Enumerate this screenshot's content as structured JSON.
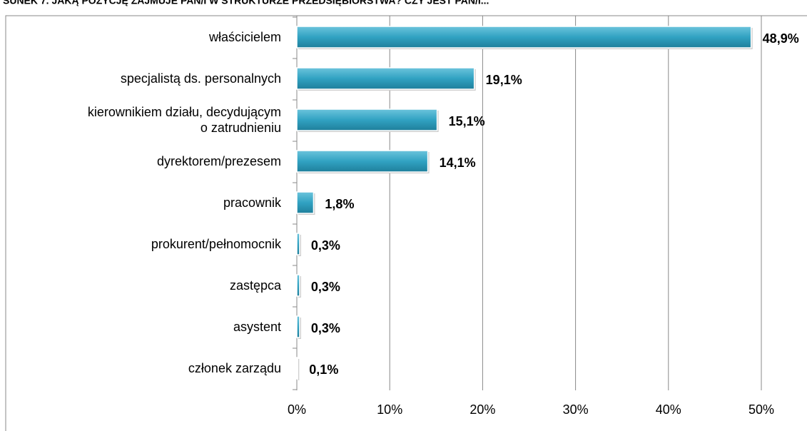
{
  "chart_data": {
    "type": "bar",
    "orientation": "horizontal",
    "title": "SUNEK 7. JAKĄ POZYCJĘ ZAJMUJE PAN/I W STRUKTURZE PRZEDSIĘBIORSTWA? CZY JEST PAN/I...",
    "categories": [
      "właścicielem",
      "specjalistą ds. personalnych",
      "kierownikiem działu, decydującym\no zatrudnieniu",
      "dyrektorem/prezesem",
      "pracownik",
      "prokurent/pełnomocnik",
      "zastępca",
      "asystent",
      "członek zarządu"
    ],
    "values": [
      48.9,
      19.1,
      15.1,
      14.1,
      1.8,
      0.3,
      0.3,
      0.3,
      0.1
    ],
    "value_labels": [
      "48,9%",
      "19,1%",
      "15,1%",
      "14,1%",
      "1,8%",
      "0,3%",
      "0,3%",
      "0,3%",
      "0,1%"
    ],
    "color": "#31a2c2",
    "xlim": [
      0,
      50
    ],
    "xticks": [
      {
        "value": 0,
        "label": "0%"
      },
      {
        "value": 10,
        "label": "10%"
      },
      {
        "value": 20,
        "label": "20%"
      },
      {
        "value": 30,
        "label": "30%"
      },
      {
        "value": 40,
        "label": "40%"
      },
      {
        "value": 50,
        "label": "50%"
      }
    ],
    "grid": true
  }
}
